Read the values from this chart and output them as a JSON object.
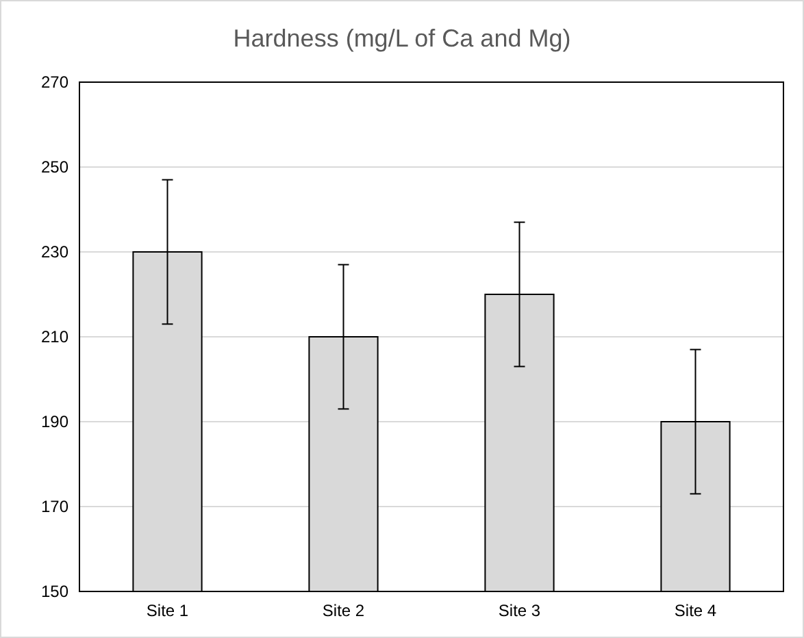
{
  "chart_data": {
    "type": "bar",
    "title": "Hardness (mg/L of Ca and Mg)",
    "categories": [
      "Site 1",
      "Site 2",
      "Site 3",
      "Site 4"
    ],
    "values": [
      230,
      210,
      220,
      190
    ],
    "errors": [
      17,
      17,
      17,
      17
    ],
    "color": "#d9d9d9",
    "ylim": [
      150,
      270
    ],
    "yticks": [
      150,
      170,
      190,
      210,
      230,
      250,
      270
    ],
    "grid": "y"
  }
}
